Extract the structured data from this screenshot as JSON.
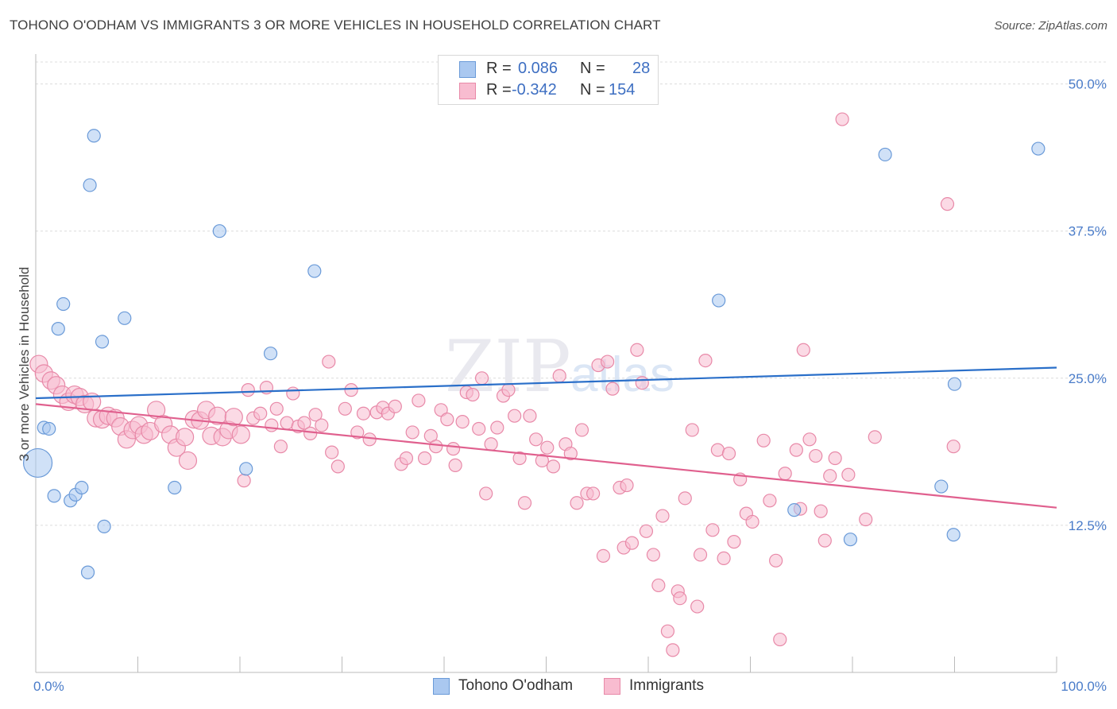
{
  "title": "TOHONO O'ODHAM VS IMMIGRANTS 3 OR MORE VEHICLES IN HOUSEHOLD CORRELATION CHART",
  "source": "Source: ZipAtlas.com",
  "watermark": "ZIPatlas",
  "legend": {
    "rows": [
      {
        "r_label": "R =",
        "r_value": "0.086",
        "n_label": "N =",
        "n_value": "28",
        "color": "#aac8f0",
        "border": "#6a9ad8"
      },
      {
        "r_label": "R =",
        "r_value": "-0.342",
        "n_label": "N =",
        "n_value": "154",
        "color": "#f8bcd0",
        "border": "#e889a8"
      }
    ]
  },
  "bottom_legend": [
    {
      "label": "Tohono O'odham",
      "color": "#aac8f0",
      "border": "#6a9ad8"
    },
    {
      "label": "Immigrants",
      "color": "#f8bcd0",
      "border": "#e889a8"
    }
  ],
  "chart_data": {
    "type": "scatter",
    "title": "TOHONO O'ODHAM VS IMMIGRANTS 3 OR MORE VEHICLES IN HOUSEHOLD CORRELATION CHART",
    "xlabel": "",
    "ylabel": "3 or more Vehicles in Household",
    "xlim": [
      0,
      100
    ],
    "ylim": [
      0,
      52
    ],
    "x_tick_labels": [
      "0.0%",
      "100.0%"
    ],
    "y_ticks": [
      12.5,
      25.0,
      37.5,
      50.0
    ],
    "y_tick_labels": [
      "12.5%",
      "25.0%",
      "37.5%",
      "50.0%"
    ],
    "grid": true,
    "legend_placement": "top-center",
    "series": [
      {
        "name": "Tohono O'odham",
        "color": "#6a9ad8",
        "fill": "#aac8f0",
        "line_color": "#2a6fc9",
        "trend": {
          "x": [
            0,
            100
          ],
          "y": [
            23.3,
            25.9
          ]
        },
        "points": [
          [
            0.2,
            17.8,
            18
          ],
          [
            0.8,
            20.8,
            8
          ],
          [
            1.3,
            20.7,
            8
          ],
          [
            1.8,
            15.0,
            8
          ],
          [
            2.2,
            29.2,
            8
          ],
          [
            2.7,
            31.3,
            8
          ],
          [
            3.4,
            14.6,
            8
          ],
          [
            3.9,
            15.1,
            8
          ],
          [
            4.5,
            15.7,
            8
          ],
          [
            5.1,
            8.5,
            8
          ],
          [
            5.3,
            41.4,
            8
          ],
          [
            5.7,
            45.6,
            8
          ],
          [
            6.5,
            28.1,
            8
          ],
          [
            6.7,
            12.4,
            8
          ],
          [
            8.7,
            30.1,
            8
          ],
          [
            13.6,
            15.7,
            8
          ],
          [
            18.0,
            37.5,
            8
          ],
          [
            20.6,
            17.3,
            8
          ],
          [
            23.0,
            27.1,
            8
          ],
          [
            27.3,
            34.1,
            8
          ],
          [
            66.9,
            31.6,
            8
          ],
          [
            74.3,
            13.8,
            8
          ],
          [
            79.8,
            11.3,
            8
          ],
          [
            83.2,
            44.0,
            8
          ],
          [
            88.7,
            15.8,
            8
          ],
          [
            89.9,
            11.7,
            8
          ],
          [
            90.0,
            24.5,
            8
          ],
          [
            98.2,
            44.5,
            8
          ]
        ]
      },
      {
        "name": "Immigrants",
        "color": "#e889a8",
        "fill": "#f8bcd0",
        "line_color": "#e0608e",
        "trend": {
          "x": [
            0,
            100
          ],
          "y": [
            22.8,
            14.0
          ]
        },
        "points": [
          [
            0.3,
            26.2,
            11
          ],
          [
            0.8,
            25.4,
            11
          ],
          [
            1.5,
            24.8,
            11
          ],
          [
            2.0,
            24.4,
            11
          ],
          [
            2.6,
            23.6,
            11
          ],
          [
            3.2,
            23.0,
            11
          ],
          [
            3.8,
            23.6,
            11
          ],
          [
            4.3,
            23.4,
            11
          ],
          [
            4.8,
            22.8,
            11
          ],
          [
            5.5,
            23.0,
            11
          ],
          [
            5.9,
            21.6,
            11
          ],
          [
            6.5,
            21.5,
            11
          ],
          [
            7.1,
            21.8,
            11
          ],
          [
            7.8,
            21.6,
            11
          ],
          [
            8.3,
            20.9,
            11
          ],
          [
            8.9,
            19.8,
            11
          ],
          [
            9.5,
            20.6,
            11
          ],
          [
            10.1,
            21.0,
            11
          ],
          [
            10.6,
            20.2,
            11
          ],
          [
            11.2,
            20.5,
            11
          ],
          [
            11.8,
            22.3,
            11
          ],
          [
            12.5,
            21.1,
            11
          ],
          [
            13.2,
            20.2,
            11
          ],
          [
            13.8,
            19.1,
            11
          ],
          [
            14.6,
            20.0,
            11
          ],
          [
            14.9,
            18.0,
            11
          ],
          [
            15.5,
            21.5,
            11
          ],
          [
            16.1,
            21.4,
            11
          ],
          [
            16.7,
            22.3,
            11
          ],
          [
            17.2,
            20.1,
            11
          ],
          [
            17.8,
            21.8,
            11
          ],
          [
            18.3,
            20.0,
            11
          ],
          [
            18.9,
            20.6,
            11
          ],
          [
            19.4,
            21.7,
            11
          ],
          [
            20.1,
            20.2,
            11
          ],
          [
            20.4,
            16.3,
            8
          ],
          [
            20.8,
            24.0,
            8
          ],
          [
            21.3,
            21.6,
            8
          ],
          [
            22.0,
            22.0,
            8
          ],
          [
            22.6,
            24.2,
            8
          ],
          [
            23.1,
            21.0,
            8
          ],
          [
            23.6,
            22.4,
            8
          ],
          [
            24.0,
            19.2,
            8
          ],
          [
            24.6,
            21.2,
            8
          ],
          [
            25.2,
            23.7,
            8
          ],
          [
            25.7,
            20.9,
            8
          ],
          [
            26.3,
            21.2,
            8
          ],
          [
            26.9,
            20.3,
            8
          ],
          [
            27.4,
            21.9,
            8
          ],
          [
            28.0,
            21.0,
            8
          ],
          [
            28.7,
            26.4,
            8
          ],
          [
            29.0,
            18.7,
            8
          ],
          [
            29.6,
            17.5,
            8
          ],
          [
            30.3,
            22.4,
            8
          ],
          [
            30.9,
            24.0,
            8
          ],
          [
            31.5,
            20.4,
            8
          ],
          [
            32.1,
            22.0,
            8
          ],
          [
            32.7,
            19.8,
            8
          ],
          [
            33.4,
            22.1,
            8
          ],
          [
            34.0,
            22.5,
            8
          ],
          [
            34.5,
            22.0,
            8
          ],
          [
            35.2,
            22.6,
            8
          ],
          [
            35.8,
            17.7,
            8
          ],
          [
            36.3,
            18.2,
            8
          ],
          [
            36.9,
            20.4,
            8
          ],
          [
            37.5,
            23.1,
            8
          ],
          [
            38.1,
            18.2,
            8
          ],
          [
            38.7,
            20.1,
            8
          ],
          [
            39.2,
            19.2,
            8
          ],
          [
            39.7,
            22.3,
            8
          ],
          [
            40.3,
            21.5,
            8
          ],
          [
            40.9,
            19.0,
            8
          ],
          [
            41.1,
            17.6,
            8
          ],
          [
            41.8,
            21.3,
            8
          ],
          [
            42.2,
            23.8,
            8
          ],
          [
            42.8,
            23.6,
            8
          ],
          [
            43.4,
            20.7,
            8
          ],
          [
            43.7,
            25.0,
            8
          ],
          [
            44.1,
            15.2,
            8
          ],
          [
            44.6,
            19.4,
            8
          ],
          [
            45.2,
            20.8,
            8
          ],
          [
            45.8,
            23.5,
            8
          ],
          [
            46.3,
            24.0,
            8
          ],
          [
            46.9,
            21.8,
            8
          ],
          [
            47.4,
            18.2,
            8
          ],
          [
            47.9,
            14.4,
            8
          ],
          [
            48.4,
            21.8,
            8
          ],
          [
            49.0,
            19.8,
            8
          ],
          [
            49.6,
            18.0,
            8
          ],
          [
            50.1,
            19.1,
            8
          ],
          [
            50.7,
            17.5,
            8
          ],
          [
            51.3,
            25.2,
            8
          ],
          [
            51.9,
            19.4,
            8
          ],
          [
            52.4,
            18.6,
            8
          ],
          [
            53.0,
            14.4,
            8
          ],
          [
            53.5,
            20.6,
            8
          ],
          [
            54.0,
            15.2,
            8
          ],
          [
            54.6,
            15.2,
            8
          ],
          [
            55.1,
            26.1,
            8
          ],
          [
            55.6,
            9.9,
            8
          ],
          [
            56.0,
            26.4,
            8
          ],
          [
            56.5,
            24.1,
            8
          ],
          [
            57.2,
            15.7,
            8
          ],
          [
            57.6,
            10.6,
            8
          ],
          [
            57.9,
            15.9,
            8
          ],
          [
            58.4,
            11.0,
            8
          ],
          [
            58.9,
            27.4,
            8
          ],
          [
            59.4,
            24.6,
            8
          ],
          [
            59.8,
            12.0,
            8
          ],
          [
            60.5,
            10.0,
            8
          ],
          [
            61.0,
            7.4,
            8
          ],
          [
            61.4,
            13.3,
            8
          ],
          [
            61.9,
            3.5,
            8
          ],
          [
            62.4,
            1.9,
            8
          ],
          [
            62.9,
            6.9,
            8
          ],
          [
            63.1,
            6.3,
            8
          ],
          [
            63.6,
            14.8,
            8
          ],
          [
            64.3,
            20.6,
            8
          ],
          [
            64.8,
            5.6,
            8
          ],
          [
            65.1,
            10.0,
            8
          ],
          [
            65.6,
            26.5,
            8
          ],
          [
            66.3,
            12.1,
            8
          ],
          [
            66.8,
            18.9,
            8
          ],
          [
            67.4,
            9.7,
            8
          ],
          [
            67.9,
            18.6,
            8
          ],
          [
            68.4,
            11.1,
            8
          ],
          [
            69.0,
            16.4,
            8
          ],
          [
            69.6,
            13.5,
            8
          ],
          [
            70.2,
            12.8,
            8
          ],
          [
            71.3,
            19.7,
            8
          ],
          [
            71.9,
            14.6,
            8
          ],
          [
            72.5,
            9.5,
            8
          ],
          [
            72.9,
            2.8,
            8
          ],
          [
            73.4,
            16.9,
            8
          ],
          [
            74.5,
            18.9,
            8
          ],
          [
            74.9,
            13.9,
            8
          ],
          [
            75.2,
            27.4,
            8
          ],
          [
            75.8,
            19.8,
            8
          ],
          [
            76.4,
            18.4,
            8
          ],
          [
            76.9,
            13.7,
            8
          ],
          [
            77.3,
            11.2,
            8
          ],
          [
            77.8,
            16.7,
            8
          ],
          [
            78.3,
            18.2,
            8
          ],
          [
            79.0,
            47.0,
            8
          ],
          [
            79.6,
            16.8,
            8
          ],
          [
            81.3,
            13.0,
            8
          ],
          [
            82.2,
            20.0,
            8
          ],
          [
            89.3,
            39.8,
            8
          ],
          [
            89.9,
            19.2,
            8
          ]
        ]
      }
    ]
  }
}
